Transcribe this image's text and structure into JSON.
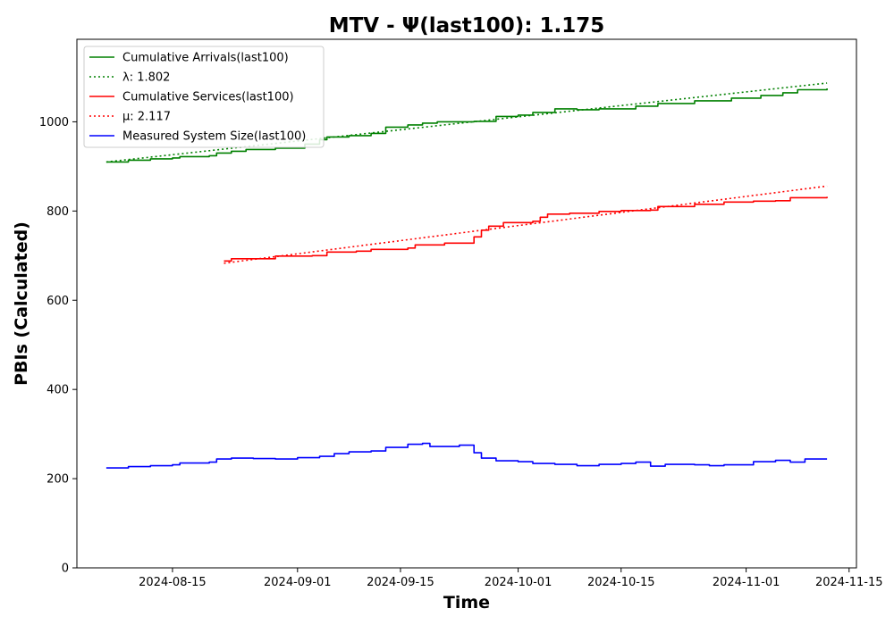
{
  "chart_data": {
    "type": "line",
    "title": "MTV -  Ψ(last100): 1.175",
    "xlabel": "Time",
    "ylabel": "PBIs (Calculated)",
    "xlim": [
      "2024-08-02",
      "2024-11-16"
    ],
    "ylim": [
      0,
      1185
    ],
    "x_ticks": [
      "2024-08-15",
      "2024-09-01",
      "2024-09-15",
      "2024-10-01",
      "2024-10-15",
      "2024-11-01",
      "2024-11-15"
    ],
    "y_ticks": [
      0,
      200,
      400,
      600,
      800,
      1000
    ],
    "grid": false,
    "legend_position": "upper-left",
    "series": [
      {
        "name": "Cumulative Arrivals(last100)",
        "color": "#008000",
        "style": "solid",
        "points": [
          [
            "2024-08-06",
            910
          ],
          [
            "2024-08-09",
            914
          ],
          [
            "2024-08-12",
            917
          ],
          [
            "2024-08-15",
            919
          ],
          [
            "2024-08-16",
            922
          ],
          [
            "2024-08-20",
            924
          ],
          [
            "2024-08-21",
            930
          ],
          [
            "2024-08-23",
            934
          ],
          [
            "2024-08-25",
            938
          ],
          [
            "2024-08-29",
            941
          ],
          [
            "2024-09-02",
            950
          ],
          [
            "2024-09-04",
            960
          ],
          [
            "2024-09-05",
            966
          ],
          [
            "2024-09-08",
            969
          ],
          [
            "2024-09-11",
            974
          ],
          [
            "2024-09-13",
            988
          ],
          [
            "2024-09-16",
            993
          ],
          [
            "2024-09-18",
            997
          ],
          [
            "2024-09-20",
            1000
          ],
          [
            "2024-09-25",
            1001
          ],
          [
            "2024-09-28",
            1012
          ],
          [
            "2024-10-01",
            1015
          ],
          [
            "2024-10-03",
            1021
          ],
          [
            "2024-10-06",
            1029
          ],
          [
            "2024-10-09",
            1027
          ],
          [
            "2024-10-12",
            1029
          ],
          [
            "2024-10-17",
            1035
          ],
          [
            "2024-10-20",
            1041
          ],
          [
            "2024-10-25",
            1047
          ],
          [
            "2024-10-30",
            1053
          ],
          [
            "2024-11-03",
            1059
          ],
          [
            "2024-11-06",
            1065
          ],
          [
            "2024-11-08",
            1072
          ],
          [
            "2024-11-12",
            1075
          ]
        ]
      },
      {
        "name": "λ: 1.802",
        "color": "#008000",
        "style": "dotted",
        "points": [
          [
            "2024-08-06",
            910
          ],
          [
            "2024-11-12",
            1087
          ]
        ]
      },
      {
        "name": "Cumulative Services(last100)",
        "color": "#ff0000",
        "style": "solid",
        "points": [
          [
            "2024-08-22",
            688
          ],
          [
            "2024-08-23",
            693
          ],
          [
            "2024-08-29",
            699
          ],
          [
            "2024-09-03",
            700
          ],
          [
            "2024-09-05",
            708
          ],
          [
            "2024-09-09",
            710
          ],
          [
            "2024-09-11",
            714
          ],
          [
            "2024-09-16",
            717
          ],
          [
            "2024-09-17",
            724
          ],
          [
            "2024-09-21",
            728
          ],
          [
            "2024-09-25",
            742
          ],
          [
            "2024-09-26",
            757
          ],
          [
            "2024-09-27",
            766
          ],
          [
            "2024-09-29",
            774
          ],
          [
            "2024-10-03",
            777
          ],
          [
            "2024-10-04",
            786
          ],
          [
            "2024-10-05",
            793
          ],
          [
            "2024-10-08",
            795
          ],
          [
            "2024-10-12",
            799
          ],
          [
            "2024-10-15",
            801
          ],
          [
            "2024-10-19",
            802
          ],
          [
            "2024-10-20",
            810
          ],
          [
            "2024-10-25",
            815
          ],
          [
            "2024-10-29",
            820
          ],
          [
            "2024-11-02",
            822
          ],
          [
            "2024-11-05",
            823
          ],
          [
            "2024-11-07",
            830
          ],
          [
            "2024-11-12",
            832
          ]
        ]
      },
      {
        "name": "μ: 2.117",
        "color": "#ff0000",
        "style": "dotted",
        "points": [
          [
            "2024-08-22",
            683
          ],
          [
            "2024-11-12",
            856
          ]
        ]
      },
      {
        "name": "Measured System Size(last100)",
        "color": "#0000ff",
        "style": "solid",
        "points": [
          [
            "2024-08-06",
            224
          ],
          [
            "2024-08-09",
            227
          ],
          [
            "2024-08-12",
            229
          ],
          [
            "2024-08-15",
            231
          ],
          [
            "2024-08-16",
            235
          ],
          [
            "2024-08-20",
            237
          ],
          [
            "2024-08-21",
            244
          ],
          [
            "2024-08-23",
            246
          ],
          [
            "2024-08-26",
            245
          ],
          [
            "2024-08-29",
            244
          ],
          [
            "2024-09-01",
            247
          ],
          [
            "2024-09-04",
            250
          ],
          [
            "2024-09-06",
            256
          ],
          [
            "2024-09-08",
            260
          ],
          [
            "2024-09-11",
            262
          ],
          [
            "2024-09-13",
            270
          ],
          [
            "2024-09-16",
            277
          ],
          [
            "2024-09-18",
            279
          ],
          [
            "2024-09-19",
            272
          ],
          [
            "2024-09-23",
            275
          ],
          [
            "2024-09-25",
            258
          ],
          [
            "2024-09-26",
            246
          ],
          [
            "2024-09-28",
            240
          ],
          [
            "2024-10-01",
            238
          ],
          [
            "2024-10-03",
            234
          ],
          [
            "2024-10-06",
            232
          ],
          [
            "2024-10-09",
            229
          ],
          [
            "2024-10-12",
            232
          ],
          [
            "2024-10-15",
            234
          ],
          [
            "2024-10-17",
            237
          ],
          [
            "2024-10-19",
            228
          ],
          [
            "2024-10-21",
            232
          ],
          [
            "2024-10-25",
            231
          ],
          [
            "2024-10-27",
            229
          ],
          [
            "2024-10-29",
            231
          ],
          [
            "2024-11-02",
            238
          ],
          [
            "2024-11-05",
            241
          ],
          [
            "2024-11-07",
            237
          ],
          [
            "2024-11-09",
            244
          ],
          [
            "2024-11-12",
            244
          ]
        ]
      }
    ]
  }
}
